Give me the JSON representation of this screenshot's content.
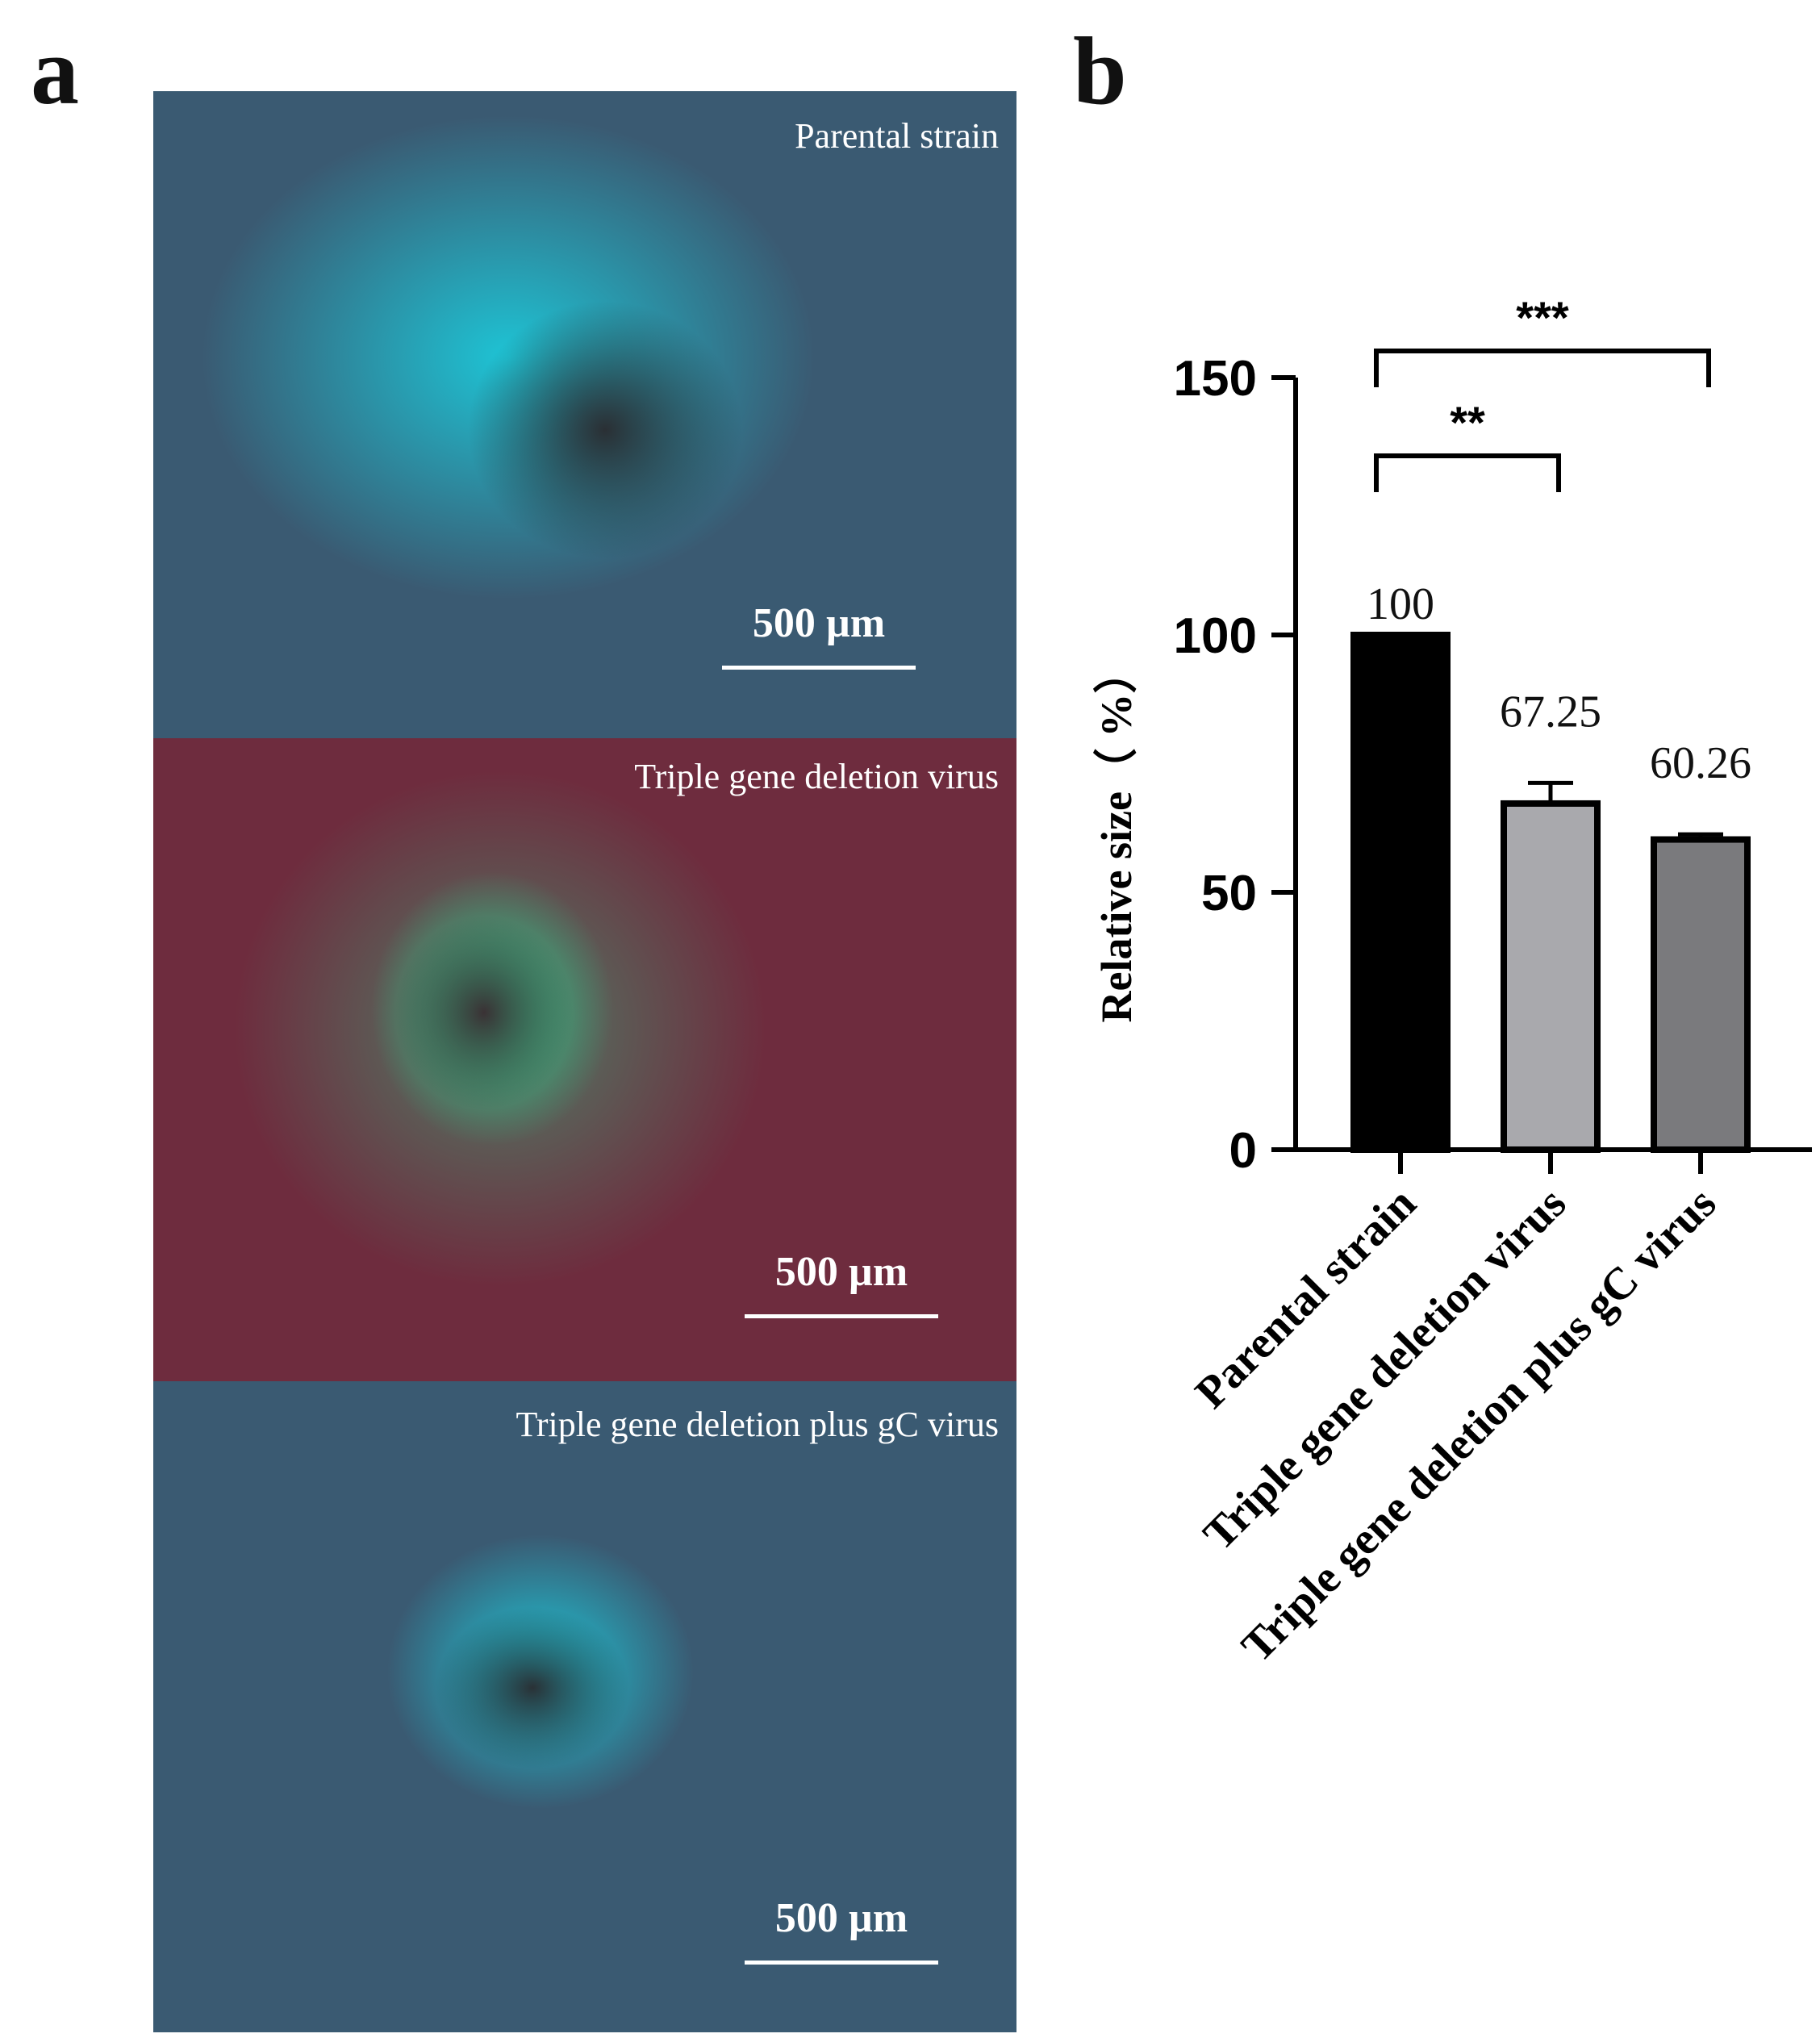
{
  "panels": {
    "a_label": "a",
    "b_label": "b"
  },
  "micrographs": [
    {
      "title": "Parental strain",
      "scale": "500 µm",
      "tint": "#3a5a72",
      "plaque": "#19d6e6"
    },
    {
      "title": "Triple gene deletion virus",
      "scale": "500 µm",
      "tint": "#6e2c3e",
      "plaque": "#2fcf8f"
    },
    {
      "title": "Triple gene deletion plus gC virus",
      "scale": "500 µm",
      "tint": "#3a5a72",
      "plaque": "#19d6e6"
    }
  ],
  "chart_data": {
    "type": "bar",
    "categories": [
      "Parental strain",
      "Triple gene deletion virus",
      "Triple gene deletion plus gC virus"
    ],
    "values": [
      100,
      67.25,
      60.26
    ],
    "value_labels": [
      "100",
      "67.25",
      "60.26"
    ],
    "errors": [
      0,
      4,
      1
    ],
    "bar_colors": [
      "#000000",
      "#a9a9ad",
      "#7a7a7d"
    ],
    "ylabel": "Relative size（ %）",
    "ylim": [
      0,
      150
    ],
    "yticks": [
      "0",
      "50",
      "100",
      "150"
    ],
    "significance": [
      {
        "from": 0,
        "to": 1,
        "label": "**"
      },
      {
        "from": 0,
        "to": 2,
        "label": "***"
      }
    ],
    "grid": false,
    "legend": "none"
  }
}
